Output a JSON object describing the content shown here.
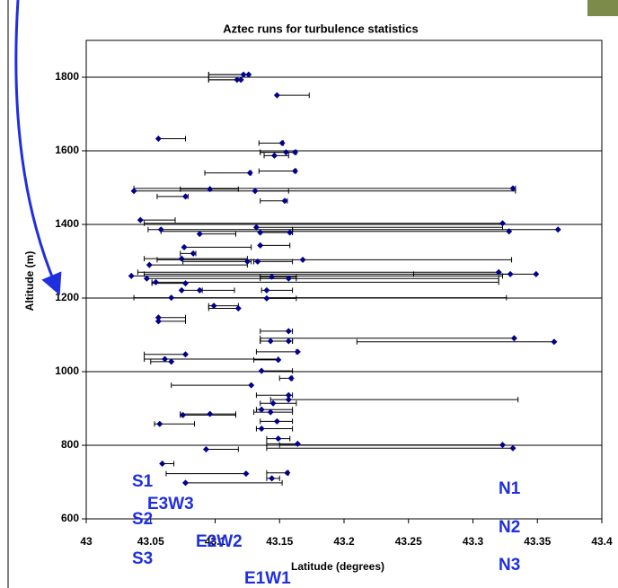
{
  "chart_data": {
    "type": "scatter",
    "title": "Aztec runs for turbulence statistics",
    "x_label": "Latitude (degrees)",
    "y_label": "Altitude (m)",
    "color": "#00008b",
    "x": [
      43.122,
      43.126,
      43.117,
      43.12,
      43.148,
      43.056,
      43.152,
      43.155,
      43.162,
      43.146,
      43.162,
      43.127,
      43.037,
      43.331,
      43.096,
      43.131,
      43.077,
      43.154,
      43.042,
      43.323,
      43.132,
      43.366,
      43.328,
      43.058,
      43.088,
      43.135,
      43.158,
      43.076,
      43.135,
      43.083,
      43.074,
      43.168,
      43.049,
      43.125,
      43.133,
      43.32,
      43.329,
      43.349,
      43.035,
      43.047,
      43.144,
      43.157,
      43.054,
      43.077,
      43.074,
      43.088,
      43.14,
      43.066,
      43.14,
      43.099,
      43.118,
      43.056,
      43.056,
      43.157,
      43.157,
      43.332,
      43.363,
      43.143,
      43.164,
      43.077,
      43.061,
      43.066,
      43.149,
      43.136,
      43.159,
      43.128,
      43.157,
      43.157,
      43.145,
      43.136,
      43.143,
      43.096,
      43.075,
      43.148,
      43.057,
      43.136,
      43.149,
      43.323,
      43.164,
      43.331,
      43.093,
      43.059,
      43.124,
      43.156,
      43.144,
      43.077
    ],
    "y": [
      1807,
      1807,
      1793,
      1793,
      1751,
      1633,
      1621,
      1596,
      1596,
      1587,
      1545,
      1540,
      1491,
      1498,
      1496,
      1491,
      1476,
      1464,
      1412,
      1403,
      1392,
      1386,
      1381,
      1386,
      1374,
      1378,
      1378,
      1338,
      1343,
      1321,
      1307,
      1304,
      1290,
      1299,
      1299,
      1270,
      1265,
      1265,
      1260,
      1253,
      1258,
      1253,
      1243,
      1240,
      1221,
      1221,
      1221,
      1201,
      1199,
      1179,
      1172,
      1147,
      1137,
      1110,
      1083,
      1091,
      1081,
      1083,
      1054,
      1047,
      1034,
      1027,
      1032,
      1002,
      982,
      963,
      936,
      924,
      914,
      897,
      890,
      885,
      882,
      865,
      858,
      845,
      818,
      801,
      804,
      792,
      789,
      750,
      723,
      725,
      710,
      698
    ],
    "x_low": [
      43.095,
      43.095,
      43.095,
      43.095,
      43.148,
      43.056,
      43.134,
      43.135,
      43.135,
      43.138,
      43.134,
      43.092,
      43.037,
      43.037,
      43.073,
      43.131,
      43.055,
      43.135,
      43.042,
      43.045,
      43.132,
      43.16,
      43.058,
      43.048,
      43.088,
      43.135,
      43.135,
      43.076,
      43.135,
      43.073,
      43.045,
      43.055,
      43.049,
      43.075,
      43.13,
      43.04,
      43.045,
      43.254,
      43.035,
      43.047,
      43.135,
      43.135,
      43.051,
      43.051,
      43.074,
      43.088,
      43.136,
      43.037,
      43.14,
      43.095,
      43.095,
      43.056,
      43.056,
      43.135,
      43.135,
      43.135,
      43.21,
      43.135,
      43.132,
      43.045,
      43.045,
      43.05,
      43.13,
      43.136,
      43.15,
      43.066,
      43.132,
      43.143,
      43.135,
      43.132,
      43.13,
      43.073,
      43.073,
      43.135,
      43.053,
      43.132,
      43.14,
      43.15,
      43.14,
      43.14,
      43.093,
      43.059,
      43.062,
      43.14,
      43.14,
      43.077
    ],
    "x_high": [
      43.126,
      43.126,
      43.12,
      43.12,
      43.173,
      43.077,
      43.153,
      43.163,
      43.163,
      43.157,
      43.163,
      43.128,
      43.333,
      43.333,
      43.118,
      43.157,
      43.079,
      43.156,
      43.069,
      43.323,
      43.323,
      43.366,
      43.328,
      43.16,
      43.116,
      43.16,
      43.16,
      43.128,
      43.158,
      43.085,
      43.125,
      43.33,
      43.125,
      43.128,
      43.16,
      43.32,
      43.329,
      43.349,
      43.323,
      43.32,
      43.163,
      43.163,
      43.32,
      43.077,
      43.09,
      43.115,
      43.16,
      43.326,
      43.163,
      43.118,
      43.118,
      43.077,
      43.077,
      43.16,
      43.16,
      43.332,
      43.363,
      43.16,
      43.163,
      43.077,
      43.149,
      43.066,
      43.149,
      43.16,
      43.16,
      43.128,
      43.16,
      43.335,
      43.163,
      43.16,
      43.16,
      43.116,
      43.116,
      43.16,
      43.084,
      43.16,
      43.158,
      43.323,
      43.164,
      43.331,
      43.118,
      43.068,
      43.124,
      43.157,
      43.15,
      43.152
    ],
    "xlim": [
      43,
      43.4
    ],
    "xticks": [
      43,
      43.05,
      43.1,
      43.15,
      43.2,
      43.25,
      43.3,
      43.35,
      43.4
    ],
    "ylim": [
      600,
      1900
    ],
    "yticks": [
      600,
      800,
      1000,
      1200,
      1400,
      1600,
      1800
    ],
    "grid": true,
    "annotations": [
      "S1",
      "E3W3",
      "S2",
      "E2W2",
      "S3",
      "E1W1",
      "N1",
      "N2",
      "N3"
    ]
  }
}
